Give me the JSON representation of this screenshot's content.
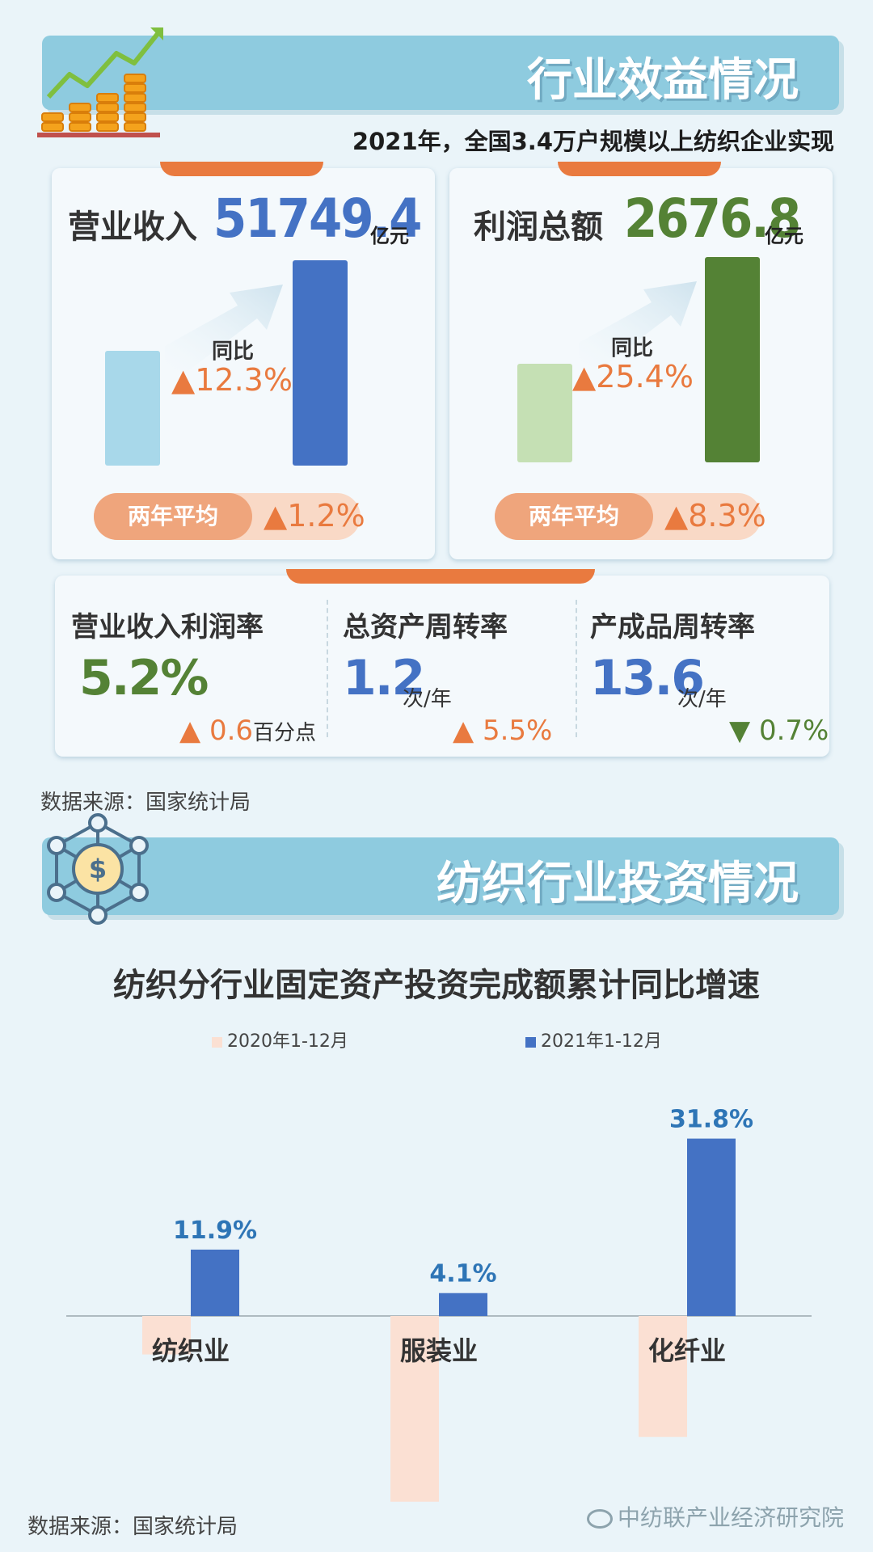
{
  "section1": {
    "title": "行业效益情况",
    "subtitle": "2021年，全国3.4万户规模以上纺织企业实现"
  },
  "revenue": {
    "label": "营业收入",
    "value": "51749.4",
    "unit": "亿元",
    "yoy_label": "同比",
    "yoy_value": "▲12.3%",
    "avg_label": "两年平均",
    "avg_value": "▲1.2%",
    "color_prev": "#a8d8ea",
    "color_curr": "#4472c4",
    "value_color": "#4472c4"
  },
  "profit": {
    "label": "利润总额",
    "value": "2676.8",
    "unit": "亿元",
    "yoy_label": "同比",
    "yoy_value": "▲25.4%",
    "avg_label": "两年平均",
    "avg_value": "▲8.3%",
    "color_prev": "#c5e0b4",
    "color_curr": "#548235",
    "value_color": "#548235"
  },
  "ratios": [
    {
      "label": "营业收入利润率",
      "value": "5.2%",
      "unit": "",
      "change_arrow": "▲",
      "change_value": "0.6",
      "change_unit": "百分点",
      "value_color": "#548235",
      "change_color": "#e97a3f"
    },
    {
      "label": "总资产周转率",
      "value": "1.2",
      "unit": "次/年",
      "change_arrow": "▲",
      "change_value": "5.5%",
      "change_unit": "",
      "value_color": "#4472c4",
      "change_color": "#e97a3f"
    },
    {
      "label": "产成品周转率",
      "value": "13.6",
      "unit": "次/年",
      "change_arrow": "▼",
      "change_value": "0.7%",
      "change_unit": "",
      "value_color": "#4472c4",
      "change_color": "#548235"
    }
  ],
  "source1": "数据来源：国家统计局",
  "section2": {
    "title": "纺织行业投资情况"
  },
  "chart_data": {
    "type": "bar",
    "title": "纺织分行业固定资产投资完成额累计同比增速",
    "categories": [
      "纺织业",
      "服装业",
      "化纤业"
    ],
    "series": [
      {
        "name": "2020年1-12月",
        "values": [
          -6.9,
          -33.3,
          -21.7
        ],
        "color": "#fbe0d3"
      },
      {
        "name": "2021年1-12月",
        "values": [
          11.9,
          4.1,
          31.8
        ],
        "color": "#4472c4"
      }
    ],
    "data_labels": [
      "",
      "",
      "",
      "11.9%",
      "4.1%",
      "31.8%"
    ],
    "label_color": "#2e75b6",
    "ylim": [
      -35,
      35
    ],
    "legend": "top-center"
  },
  "source2": "数据来源：国家统计局",
  "watermark": "中纺联产业经济研究院"
}
